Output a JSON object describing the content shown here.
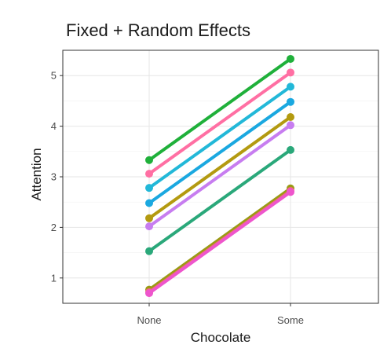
{
  "chart_data": {
    "type": "line",
    "title": "Fixed + Random Effects",
    "xlabel": "Chocolate",
    "ylabel": "Attention",
    "categories": [
      "None",
      "Some"
    ],
    "ylim": [
      0.5,
      5.5
    ],
    "yticks": [
      "1",
      "2",
      "3",
      "4",
      "5"
    ],
    "grid": true,
    "series": [
      {
        "values": [
          3.33,
          5.33
        ],
        "color": "#1fb03a"
      },
      {
        "values": [
          3.06,
          5.06
        ],
        "color": "#ff6fa3"
      },
      {
        "values": [
          2.78,
          4.78
        ],
        "color": "#22b8d8"
      },
      {
        "values": [
          2.48,
          4.48
        ],
        "color": "#1aa8e0"
      },
      {
        "values": [
          2.18,
          4.18
        ],
        "color": "#b39a10"
      },
      {
        "values": [
          2.02,
          4.02
        ],
        "color": "#c77df0"
      },
      {
        "values": [
          1.53,
          3.53
        ],
        "color": "#2aa87a"
      },
      {
        "values": [
          0.77,
          2.77
        ],
        "color": "#9a9a14"
      },
      {
        "values": [
          0.72,
          2.72
        ],
        "color": "#f06a7a"
      },
      {
        "values": [
          0.7,
          2.7
        ],
        "color": "#ee55cc"
      }
    ]
  }
}
